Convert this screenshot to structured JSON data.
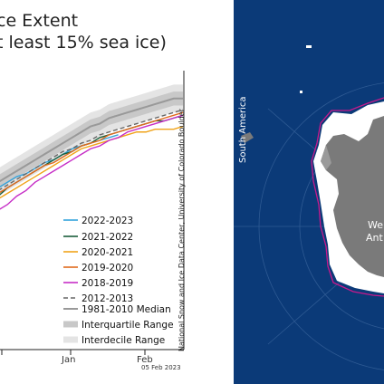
{
  "chart": {
    "title_line1": "ce Extent",
    "title_line2": "t least 15% sea ice)",
    "credit": "National Snow and Ice Data Center, University of Colorado Boulder",
    "date_stamp": "05 Feb 2023"
  },
  "chart_data": {
    "type": "line",
    "title": "ce Extent (t least 15% sea ice)",
    "x_tick_labels": [
      "Jan",
      "Feb"
    ],
    "y_range": [
      0,
      100
    ],
    "series": [
      {
        "name": "2022-2023",
        "color": "#33a3dc",
        "dash": "",
        "x": [
          0,
          10,
          20,
          30,
          40,
          50,
          60,
          70,
          80,
          90,
          100,
          110,
          120,
          130
        ],
        "y": [
          58,
          60,
          62,
          63,
          65,
          67,
          68,
          70,
          72,
          73,
          74,
          75,
          76,
          77
        ]
      },
      {
        "name": "2021-2022",
        "color": "#1a5e3a",
        "dash": "",
        "x": [
          0,
          10,
          20,
          30,
          40,
          50,
          60,
          70,
          80,
          90,
          100,
          110,
          120,
          130,
          140,
          150,
          160,
          170,
          180,
          190,
          200
        ],
        "y": [
          55,
          58,
          60,
          62,
          64,
          66,
          68,
          70,
          71,
          73,
          74,
          76,
          77,
          78,
          79,
          80,
          81,
          82,
          82,
          83,
          84
        ]
      },
      {
        "name": "2020-2021",
        "color": "#f0a31a",
        "dash": "",
        "x": [
          0,
          10,
          20,
          30,
          40,
          50,
          60,
          70,
          80,
          90,
          100,
          110,
          120,
          130,
          140,
          150,
          160,
          170,
          180,
          190,
          200
        ],
        "y": [
          54,
          56,
          58,
          60,
          62,
          64,
          66,
          68,
          70,
          72,
          73,
          74,
          75,
          76,
          77,
          78,
          78,
          79,
          79,
          79,
          80
        ]
      },
      {
        "name": "2019-2020",
        "color": "#e06a1e",
        "dash": "",
        "x": [
          0,
          10,
          20,
          30,
          40,
          50,
          60,
          70,
          80,
          90,
          100,
          110,
          120,
          130,
          140,
          150,
          160,
          170,
          180,
          190,
          200
        ],
        "y": [
          56,
          58,
          60,
          62,
          64,
          66,
          67,
          69,
          71,
          73,
          74,
          75,
          77,
          78,
          79,
          80,
          81,
          82,
          83,
          84,
          85
        ]
      },
      {
        "name": "2018-2019",
        "color": "#c62ec6",
        "dash": "",
        "x": [
          0,
          10,
          20,
          30,
          40,
          50,
          60,
          70,
          80,
          90,
          100,
          110,
          120,
          130,
          140,
          150,
          160,
          170,
          180,
          190,
          200
        ],
        "y": [
          50,
          52,
          55,
          57,
          60,
          62,
          64,
          66,
          68,
          70,
          72,
          73,
          75,
          76,
          78,
          79,
          80,
          81,
          82,
          83,
          84
        ]
      },
      {
        "name": "2012-2013",
        "color": "#666666",
        "dash": "5,3",
        "x": [
          0,
          10,
          20,
          30,
          40,
          50,
          60,
          70,
          80,
          90,
          100,
          110,
          120,
          130,
          140,
          150,
          160,
          170,
          180,
          190,
          200
        ],
        "y": [
          57,
          59,
          61,
          63,
          65,
          67,
          69,
          71,
          72,
          74,
          75,
          77,
          78,
          79,
          80,
          81,
          82,
          83,
          84,
          85,
          86
        ]
      },
      {
        "name": "1981-2010 Median",
        "color": "#999999",
        "dash": "",
        "x": [
          0,
          10,
          20,
          30,
          40,
          50,
          60,
          70,
          80,
          90,
          100,
          110,
          120,
          130,
          140,
          150,
          160,
          170,
          180,
          190,
          200
        ],
        "y": [
          60,
          62,
          64,
          66,
          68,
          70,
          72,
          74,
          76,
          78,
          80,
          81,
          83,
          84,
          85,
          86,
          87,
          88,
          89,
          90,
          90
        ]
      }
    ],
    "bands": [
      {
        "name": "Interquartile Range",
        "color": "#c8c8c8",
        "half_width": 2.5
      },
      {
        "name": "Interdecile Range",
        "color": "#e4e4e4",
        "half_width": 5
      }
    ]
  },
  "map": {
    "label_south_america": "South America",
    "label_west_line1": "We",
    "label_west_line2": "Ant",
    "colors": {
      "ocean": "#0b3a78",
      "land": "#7a7a7a",
      "ice": "#ffffff",
      "median_line": "#c8198c"
    }
  }
}
